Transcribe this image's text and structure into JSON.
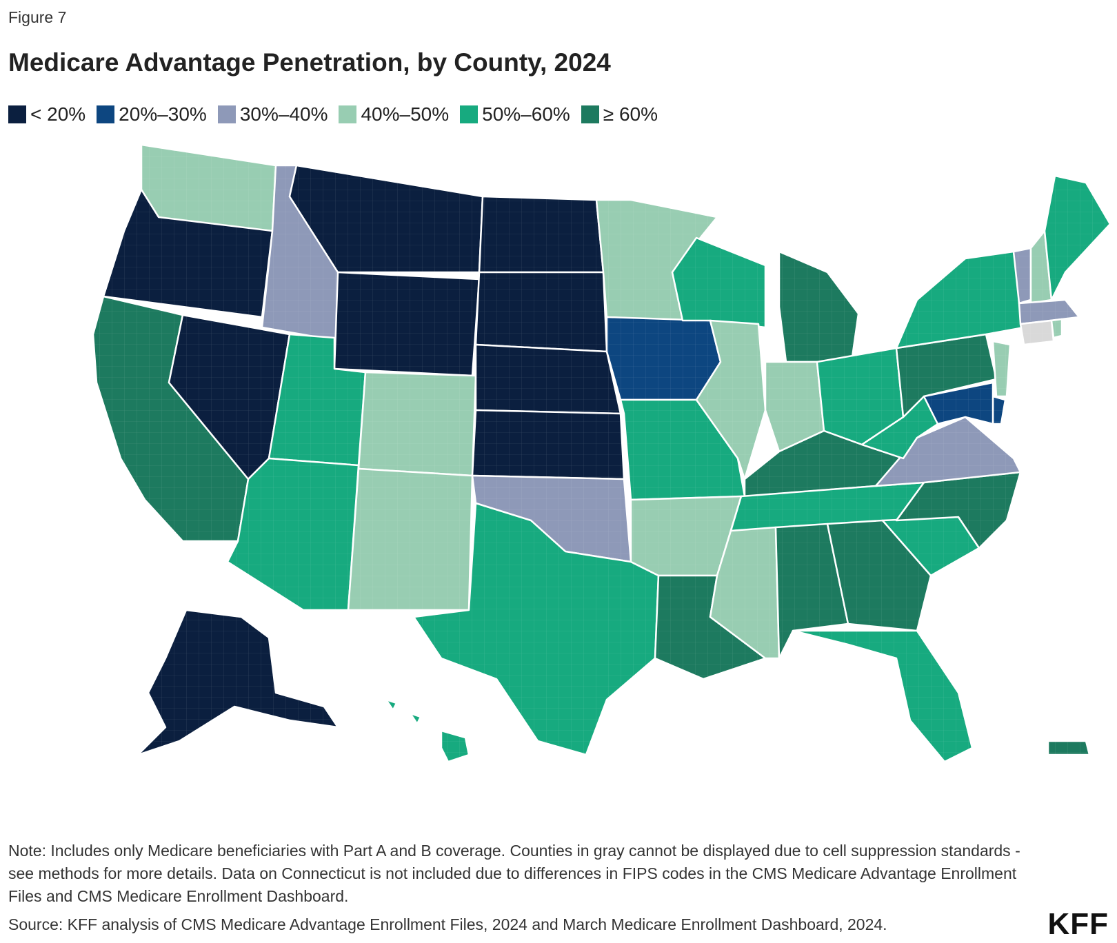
{
  "figure_label": "Figure 7",
  "title": "Medicare Advantage Penetration, by County, 2024",
  "legend": [
    {
      "label": "< 20%",
      "color": "#0b1f3f"
    },
    {
      "label": "20%–30%",
      "color": "#0d4680"
    },
    {
      "label": "30%–40%",
      "color": "#8e99b8"
    },
    {
      "label": "40%–50%",
      "color": "#98cdb2"
    },
    {
      "label": "50%–60%",
      "color": "#17aa7f"
    },
    {
      "label": "≥ 60%",
      "color": "#1d7a5f"
    }
  ],
  "suppressed_color": "#d9d9d9",
  "regions": [
    {
      "name": "Washington",
      "bin": 3
    },
    {
      "name": "Oregon",
      "bin": 0
    },
    {
      "name": "California",
      "bin": 5
    },
    {
      "name": "Nevada",
      "bin": 0
    },
    {
      "name": "Idaho",
      "bin": 2
    },
    {
      "name": "Montana",
      "bin": 0
    },
    {
      "name": "Wyoming",
      "bin": 0
    },
    {
      "name": "Utah",
      "bin": 4
    },
    {
      "name": "Arizona",
      "bin": 4
    },
    {
      "name": "Colorado",
      "bin": 3
    },
    {
      "name": "New Mexico",
      "bin": 3
    },
    {
      "name": "North Dakota",
      "bin": 0
    },
    {
      "name": "South Dakota",
      "bin": 0
    },
    {
      "name": "Nebraska",
      "bin": 0
    },
    {
      "name": "Kansas",
      "bin": 0
    },
    {
      "name": "Oklahoma",
      "bin": 2
    },
    {
      "name": "Texas",
      "bin": 4
    },
    {
      "name": "Minnesota",
      "bin": 3
    },
    {
      "name": "Iowa",
      "bin": 1
    },
    {
      "name": "Missouri",
      "bin": 4
    },
    {
      "name": "Arkansas",
      "bin": 3
    },
    {
      "name": "Louisiana",
      "bin": 5
    },
    {
      "name": "Wisconsin",
      "bin": 4
    },
    {
      "name": "Illinois",
      "bin": 3
    },
    {
      "name": "Michigan",
      "bin": 5
    },
    {
      "name": "Indiana",
      "bin": 3
    },
    {
      "name": "Ohio",
      "bin": 4
    },
    {
      "name": "Kentucky",
      "bin": 5
    },
    {
      "name": "Tennessee",
      "bin": 4
    },
    {
      "name": "Mississippi",
      "bin": 3
    },
    {
      "name": "Alabama",
      "bin": 5
    },
    {
      "name": "Georgia",
      "bin": 5
    },
    {
      "name": "Florida",
      "bin": 4
    },
    {
      "name": "South Carolina",
      "bin": 4
    },
    {
      "name": "North Carolina",
      "bin": 5
    },
    {
      "name": "Virginia",
      "bin": 2
    },
    {
      "name": "West Virginia",
      "bin": 4
    },
    {
      "name": "Pennsylvania",
      "bin": 5
    },
    {
      "name": "New York",
      "bin": 4
    },
    {
      "name": "Vermont",
      "bin": 2
    },
    {
      "name": "New Hampshire",
      "bin": 3
    },
    {
      "name": "Maine",
      "bin": 4
    },
    {
      "name": "Massachusetts",
      "bin": 2
    },
    {
      "name": "Connecticut",
      "bin": -1
    },
    {
      "name": "Rhode Island",
      "bin": 3
    },
    {
      "name": "New Jersey",
      "bin": 3
    },
    {
      "name": "Delaware",
      "bin": 1
    },
    {
      "name": "Maryland",
      "bin": 1
    },
    {
      "name": "Alaska",
      "bin": 0
    },
    {
      "name": "Hawaii",
      "bin": 4
    },
    {
      "name": "Puerto Rico",
      "bin": 5
    }
  ],
  "note": "Note: Includes only Medicare beneficiaries with Part A and B coverage. Counties in gray cannot be displayed due to cell suppression standards - see methods for more details. Data on Connecticut is not included due to differences in FIPS codes in the CMS Medicare Advantage Enrollment Files and CMS Medicare Enrollment Dashboard.",
  "source": "Source: KFF analysis of CMS Medicare Advantage Enrollment Files, 2024 and March Medicare Enrollment Dashboard, 2024.",
  "logo": "KFF"
}
